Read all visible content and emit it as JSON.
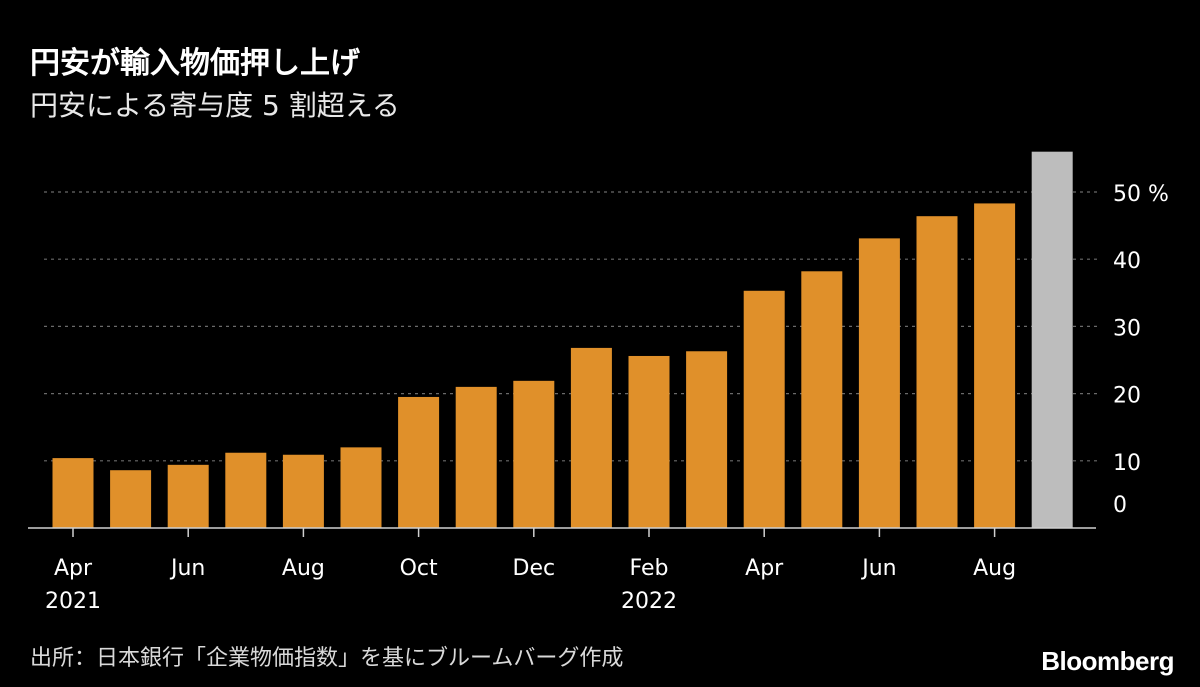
{
  "title": "円安が輸入物価押し上げ",
  "subtitle": "円安による寄与度 5 割超える",
  "source": "出所：日本銀行「企業物価指数」を基にブルームバーグ作成",
  "brand": "Bloomberg",
  "colors": {
    "background": "#000000",
    "bar": "#E0902A",
    "highlight_bar": "#BDBDBD",
    "grid": "#6a6a6a",
    "axis": "#d0d0d0",
    "text": "#ffffff"
  },
  "chart_data": {
    "type": "bar",
    "categories": [
      "2021-04",
      "2021-05",
      "2021-06",
      "2021-07",
      "2021-08",
      "2021-09",
      "2021-10",
      "2021-11",
      "2021-12",
      "2022-01",
      "2022-02",
      "2022-03",
      "2022-04",
      "2022-05",
      "2022-06",
      "2022-07",
      "2022-08",
      "2022-09"
    ],
    "values": [
      10.4,
      8.6,
      9.4,
      11.2,
      10.9,
      12.0,
      19.5,
      21.0,
      21.9,
      26.8,
      25.6,
      26.3,
      35.3,
      38.2,
      43.1,
      46.4,
      48.3,
      56.0
    ],
    "highlight_index": 17,
    "title": "円安が輸入物価押し上げ",
    "subtitle": "円安による寄与度 5 割超える",
    "xlabel": "",
    "ylabel": "",
    "ylim": [
      0,
      56
    ],
    "yticks": [
      0,
      10,
      20,
      30,
      40,
      50
    ],
    "ytick_labels": [
      "0",
      "10",
      "20",
      "30",
      "40",
      "50 %"
    ],
    "x_tick_labels": [
      {
        "index": 0,
        "label": "Apr",
        "year": "2021"
      },
      {
        "index": 2,
        "label": "Jun",
        "year": ""
      },
      {
        "index": 4,
        "label": "Aug",
        "year": ""
      },
      {
        "index": 6,
        "label": "Oct",
        "year": ""
      },
      {
        "index": 8,
        "label": "Dec",
        "year": ""
      },
      {
        "index": 10,
        "label": "Feb",
        "year": "2022"
      },
      {
        "index": 12,
        "label": "Apr",
        "year": ""
      },
      {
        "index": 14,
        "label": "Jun",
        "year": ""
      },
      {
        "index": 16,
        "label": "Aug",
        "year": ""
      }
    ],
    "grid": true,
    "grid_style": "dotted",
    "legend": false
  }
}
